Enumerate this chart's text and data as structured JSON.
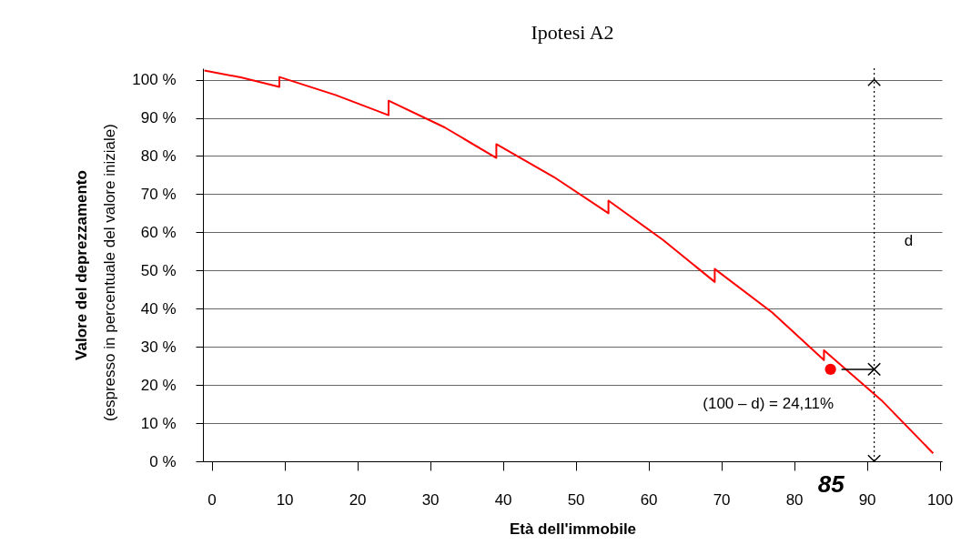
{
  "chart_data": {
    "type": "line",
    "title": "Ipotesi A2",
    "xlabel": "Età dell'immobile",
    "ylabel": "Valore  del deprezzamento",
    "series": [
      {
        "color": "#ff0000",
        "x": [
          -1,
          4,
          9.3,
          9.3,
          17,
          24.3,
          24.3,
          32,
          39.1,
          39.1,
          47,
          54.5,
          54.5,
          62,
          69.1,
          69.1,
          77,
          84.1,
          84.1,
          92,
          99.1
        ],
        "values": [
          102.4,
          100.6,
          98.1,
          100.7,
          96,
          90.7,
          94.5,
          87.5,
          79.5,
          83.1,
          74.5,
          65,
          68.3,
          58,
          47,
          50.4,
          39,
          26.5,
          29.1,
          16,
          2.1
        ]
      },
      {
        "type": "scatter",
        "color": "#ff0000",
        "marker": "circle",
        "x": [
          85
        ],
        "values": [
          24.11
        ]
      }
    ],
    "xlim": [
      -1.2,
      100.3
    ],
    "xticks": [
      0,
      10,
      20,
      30,
      40,
      50,
      60,
      70,
      80,
      90,
      100
    ],
    "ylim": [
      0,
      103
    ],
    "yticks": [
      {
        "value": 0,
        "label": "0 %"
      },
      {
        "value": 10,
        "label": "10 %"
      },
      {
        "value": 20,
        "label": "20 %"
      },
      {
        "value": 30,
        "label": "30 %"
      },
      {
        "value": 40,
        "label": "40 %"
      },
      {
        "value": 50,
        "label": "50 %"
      },
      {
        "value": 60,
        "label": "60 %"
      },
      {
        "value": 70,
        "label": "70 %"
      },
      {
        "value": 80,
        "label": "80 %"
      },
      {
        "value": 90,
        "label": "90 %"
      },
      {
        "value": 100,
        "label": "100 %"
      }
    ],
    "grid": "y",
    "line_style": "solid",
    "ref_lines": [
      {
        "axis": "x",
        "value": 91,
        "line_style": "dotted",
        "color": "#000000"
      }
    ],
    "annotations": [
      "(espresso in percentuale del valore iniziale)",
      "d",
      "(100 – d)  =  24,11%",
      "85"
    ]
  }
}
